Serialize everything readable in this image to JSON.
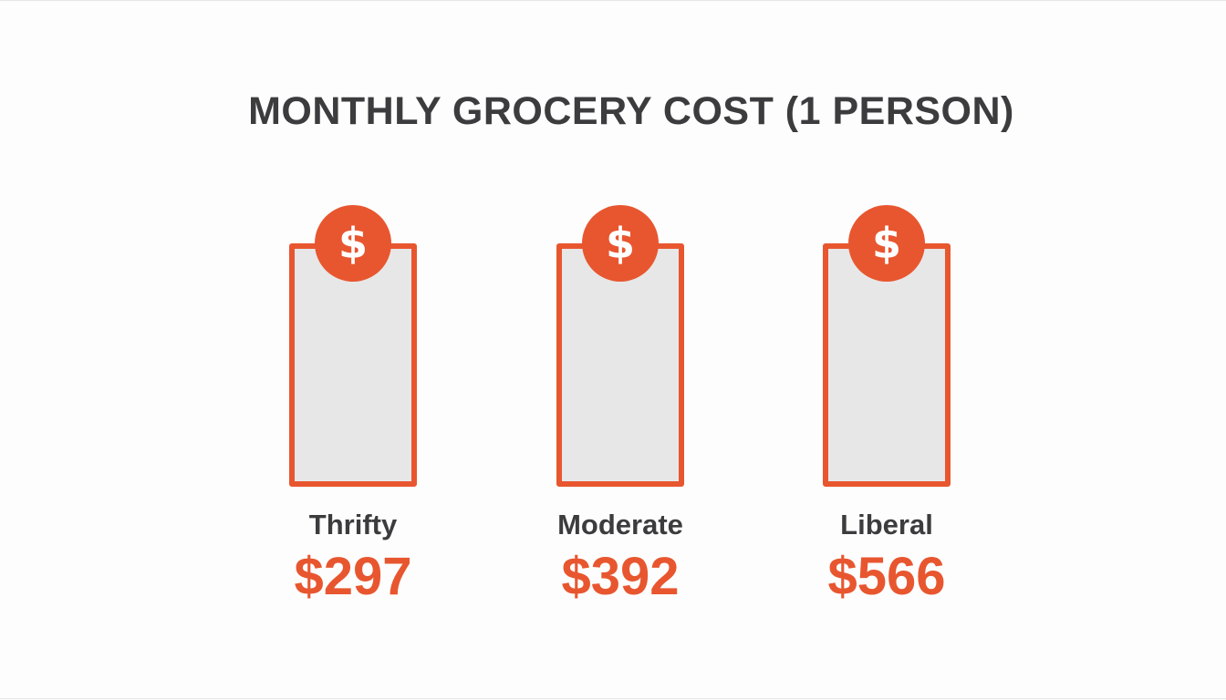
{
  "chart_data": {
    "type": "bar",
    "title": "MONTHLY GROCERY COST (1 PERSON)",
    "categories": [
      "Thrifty",
      "Moderate",
      "Liberal"
    ],
    "values": [
      297,
      392,
      566
    ],
    "value_labels": [
      "$297",
      "$392",
      "$566"
    ],
    "unit": "$",
    "icon": "dollar-coin-icon",
    "icon_glyph": "$",
    "colors": {
      "accent": "#e8562f",
      "text": "#3c3c3e",
      "card_fill": "#e7e7e7",
      "background": "#fdfdfd"
    }
  }
}
